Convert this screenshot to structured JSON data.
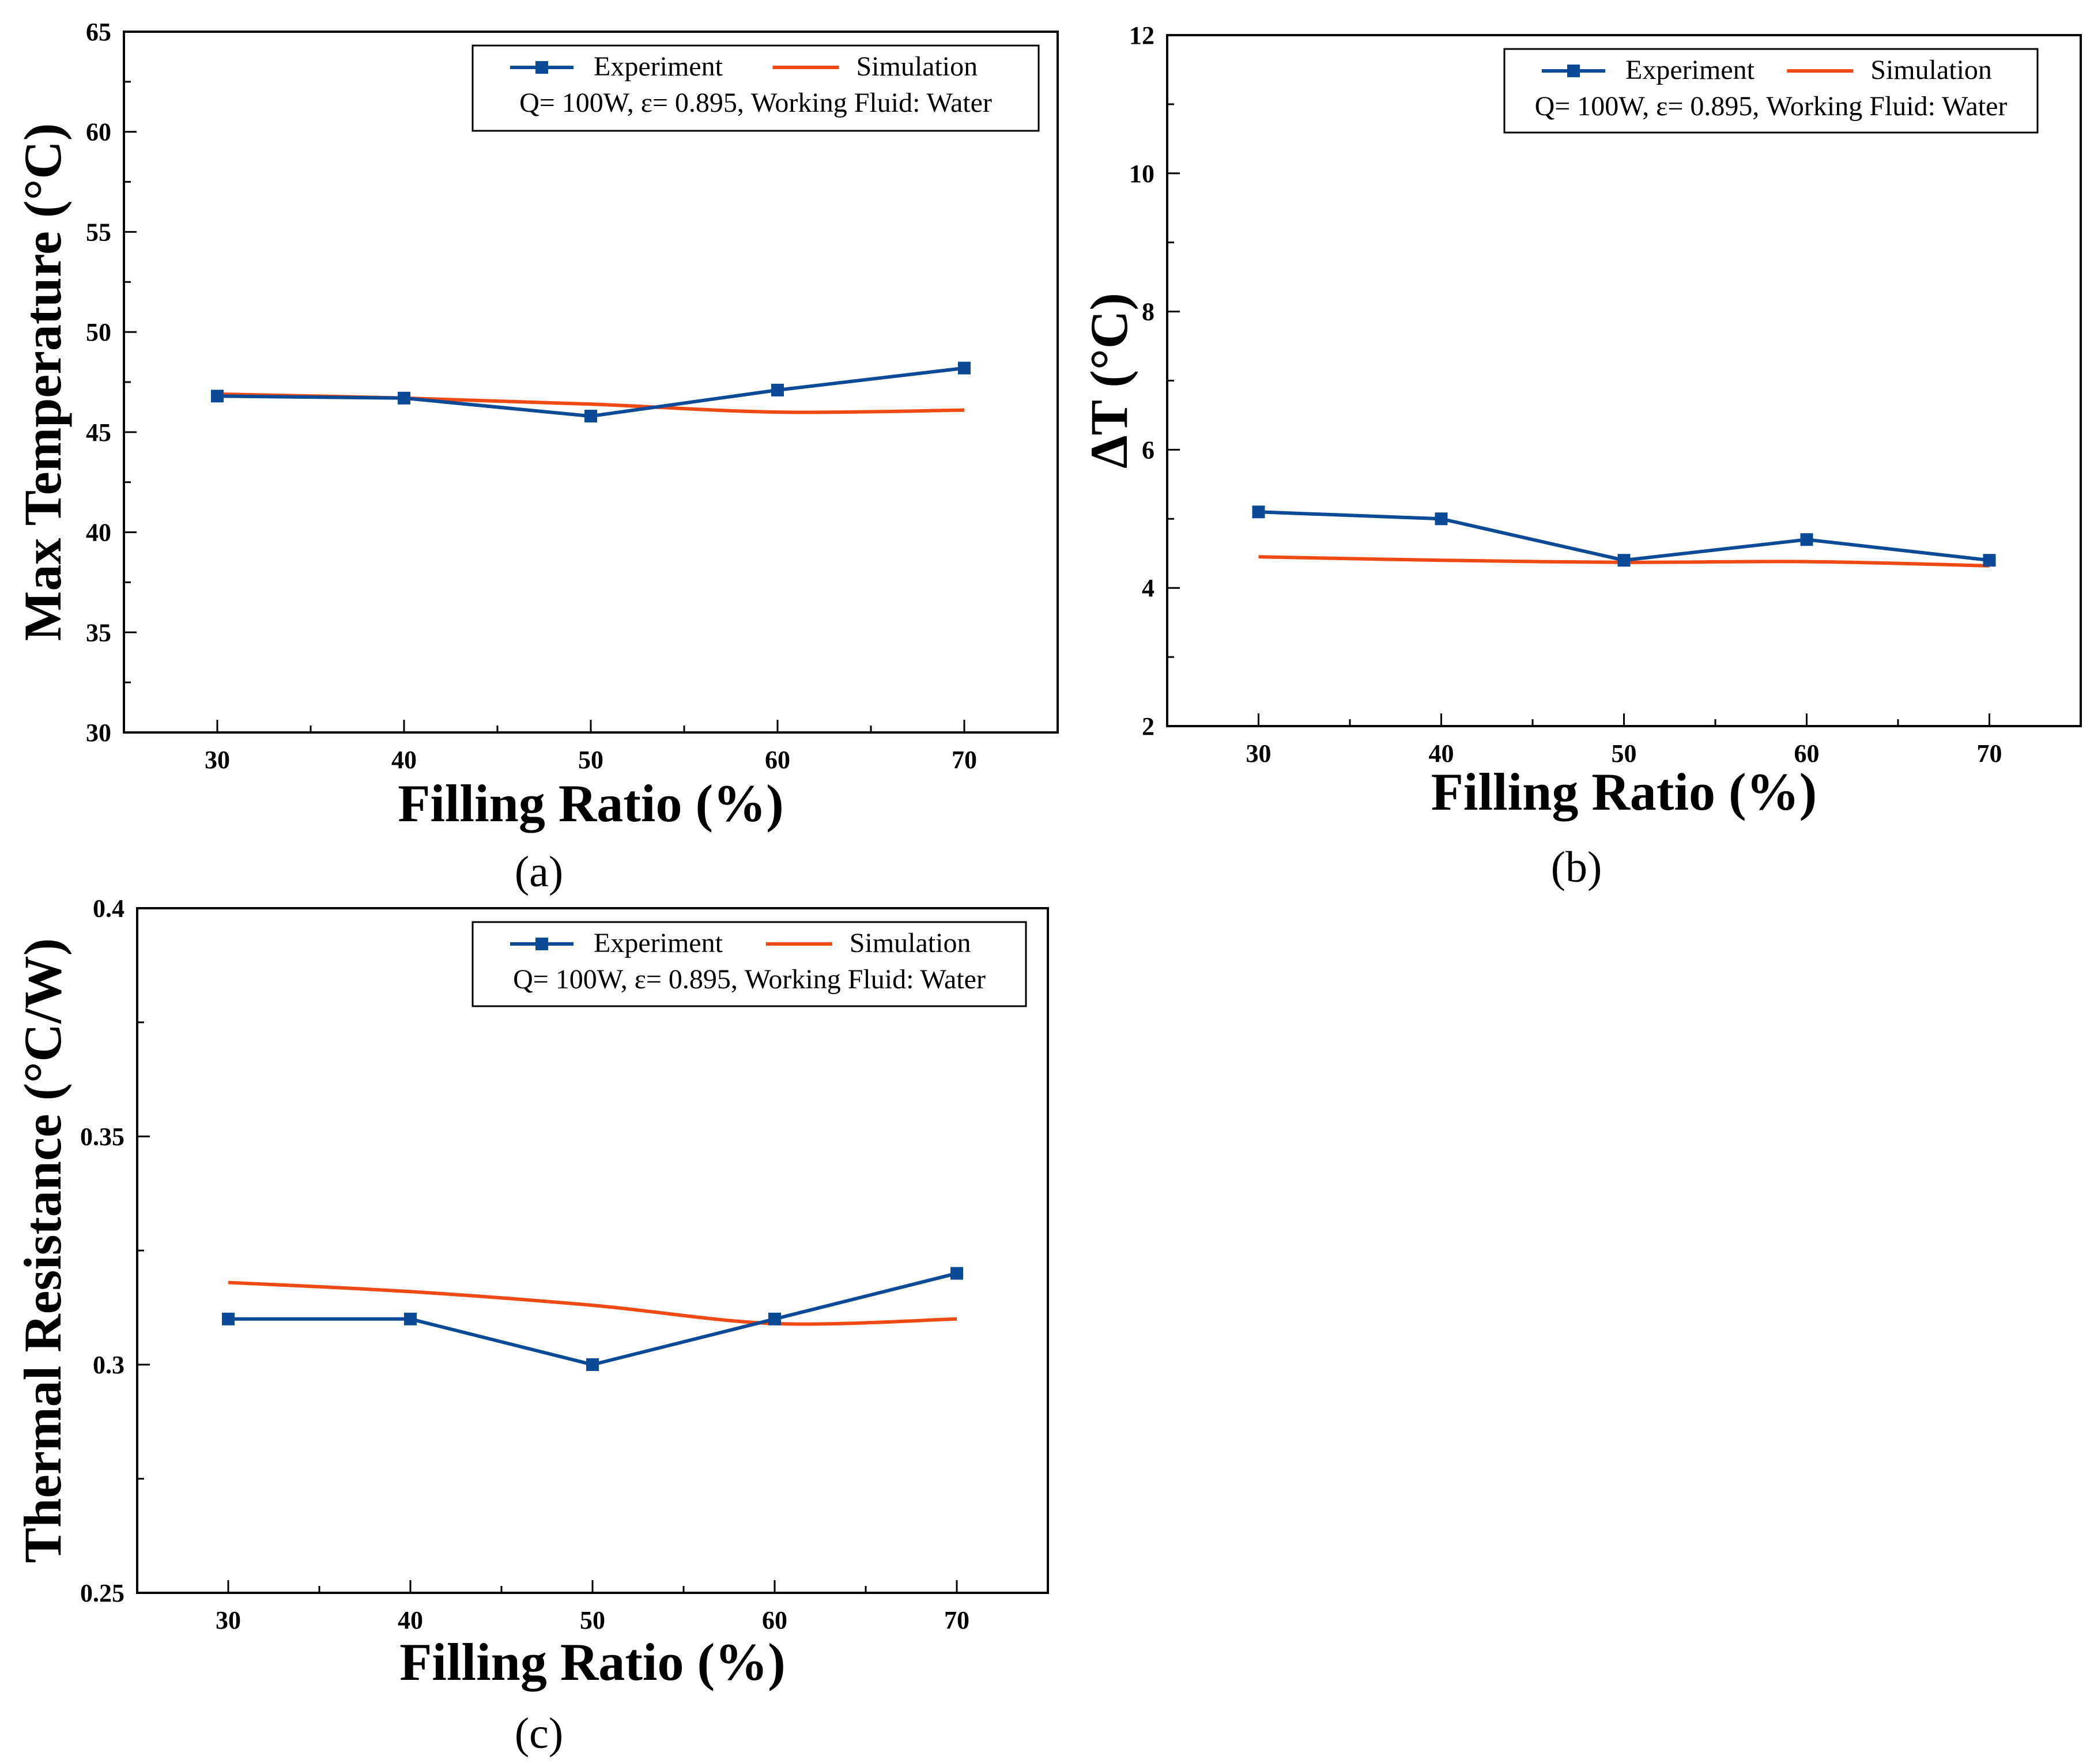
{
  "colors": {
    "experiment": "#0a4a96",
    "simulation": "#f04a14",
    "axis": "#000000"
  },
  "legend": {
    "experiment_label": "Experiment",
    "simulation_label": "Simulation",
    "conditions": "Q= 100W,  ε= 0.895, Working Fluid: Water"
  },
  "chart_data": [
    {
      "type": "line",
      "panel": "(a)",
      "xlabel": "Filling Ratio (%)",
      "ylabel": "Max Temperature (°C)",
      "xlim": [
        25,
        75
      ],
      "ylim": [
        30,
        65
      ],
      "xticks": [
        30,
        40,
        50,
        60,
        70
      ],
      "yticks": [
        30,
        35,
        40,
        45,
        50,
        55,
        60,
        65
      ],
      "xtick_labels": [
        "30",
        "40",
        "50",
        "60",
        "70"
      ],
      "ytick_labels": [
        "30",
        "35",
        "40",
        "45",
        "50",
        "55",
        "60",
        "65"
      ],
      "legend_position": "top-right",
      "series": [
        {
          "name": "Experiment",
          "x": [
            30,
            40,
            50,
            60,
            70
          ],
          "values": [
            46.8,
            46.7,
            45.8,
            47.1,
            48.2
          ],
          "markers": true
        },
        {
          "name": "Simulation",
          "x": [
            30,
            40,
            50,
            60,
            70
          ],
          "values": [
            46.9,
            46.7,
            46.4,
            46.0,
            46.1
          ],
          "markers": false
        }
      ]
    },
    {
      "type": "line",
      "panel": "(b)",
      "xlabel": "Filling Ratio (%)",
      "ylabel": "ΔT (°C)",
      "xlim": [
        25,
        75
      ],
      "ylim": [
        2,
        12
      ],
      "xticks": [
        30,
        40,
        50,
        60,
        70
      ],
      "yticks": [
        2,
        4,
        6,
        8,
        10,
        12
      ],
      "xtick_labels": [
        "30",
        "40",
        "50",
        "60",
        "70"
      ],
      "ytick_labels": [
        "2",
        "4",
        "6",
        "8",
        "10",
        "12"
      ],
      "legend_position": "top-right",
      "series": [
        {
          "name": "Experiment",
          "x": [
            30,
            40,
            50,
            60,
            70
          ],
          "values": [
            5.1,
            5.0,
            4.4,
            4.7,
            4.4
          ],
          "markers": true
        },
        {
          "name": "Simulation",
          "x": [
            30,
            40,
            50,
            60,
            70
          ],
          "values": [
            4.45,
            4.4,
            4.37,
            4.38,
            4.32
          ],
          "markers": false
        }
      ]
    },
    {
      "type": "line",
      "panel": "(c)",
      "xlabel": "Filling Ratio (%)",
      "ylabel": "Thermal Resistance (°C/W)",
      "xlim": [
        25,
        75
      ],
      "ylim": [
        0.25,
        0.4
      ],
      "xticks": [
        30,
        40,
        50,
        60,
        70
      ],
      "yticks": [
        0.25,
        0.3,
        0.35,
        0.4
      ],
      "xtick_labels": [
        "30",
        "40",
        "50",
        "60",
        "70"
      ],
      "ytick_labels": [
        "0.25",
        "0.3",
        "0.35",
        "0.4"
      ],
      "legend_position": "top-right",
      "series": [
        {
          "name": "Experiment",
          "x": [
            30,
            40,
            50,
            60,
            70
          ],
          "values": [
            0.31,
            0.31,
            0.3,
            0.31,
            0.32
          ],
          "markers": true
        },
        {
          "name": "Simulation",
          "x": [
            30,
            40,
            50,
            60,
            70
          ],
          "values": [
            0.318,
            0.316,
            0.313,
            0.309,
            0.31
          ],
          "markers": false
        }
      ]
    }
  ]
}
